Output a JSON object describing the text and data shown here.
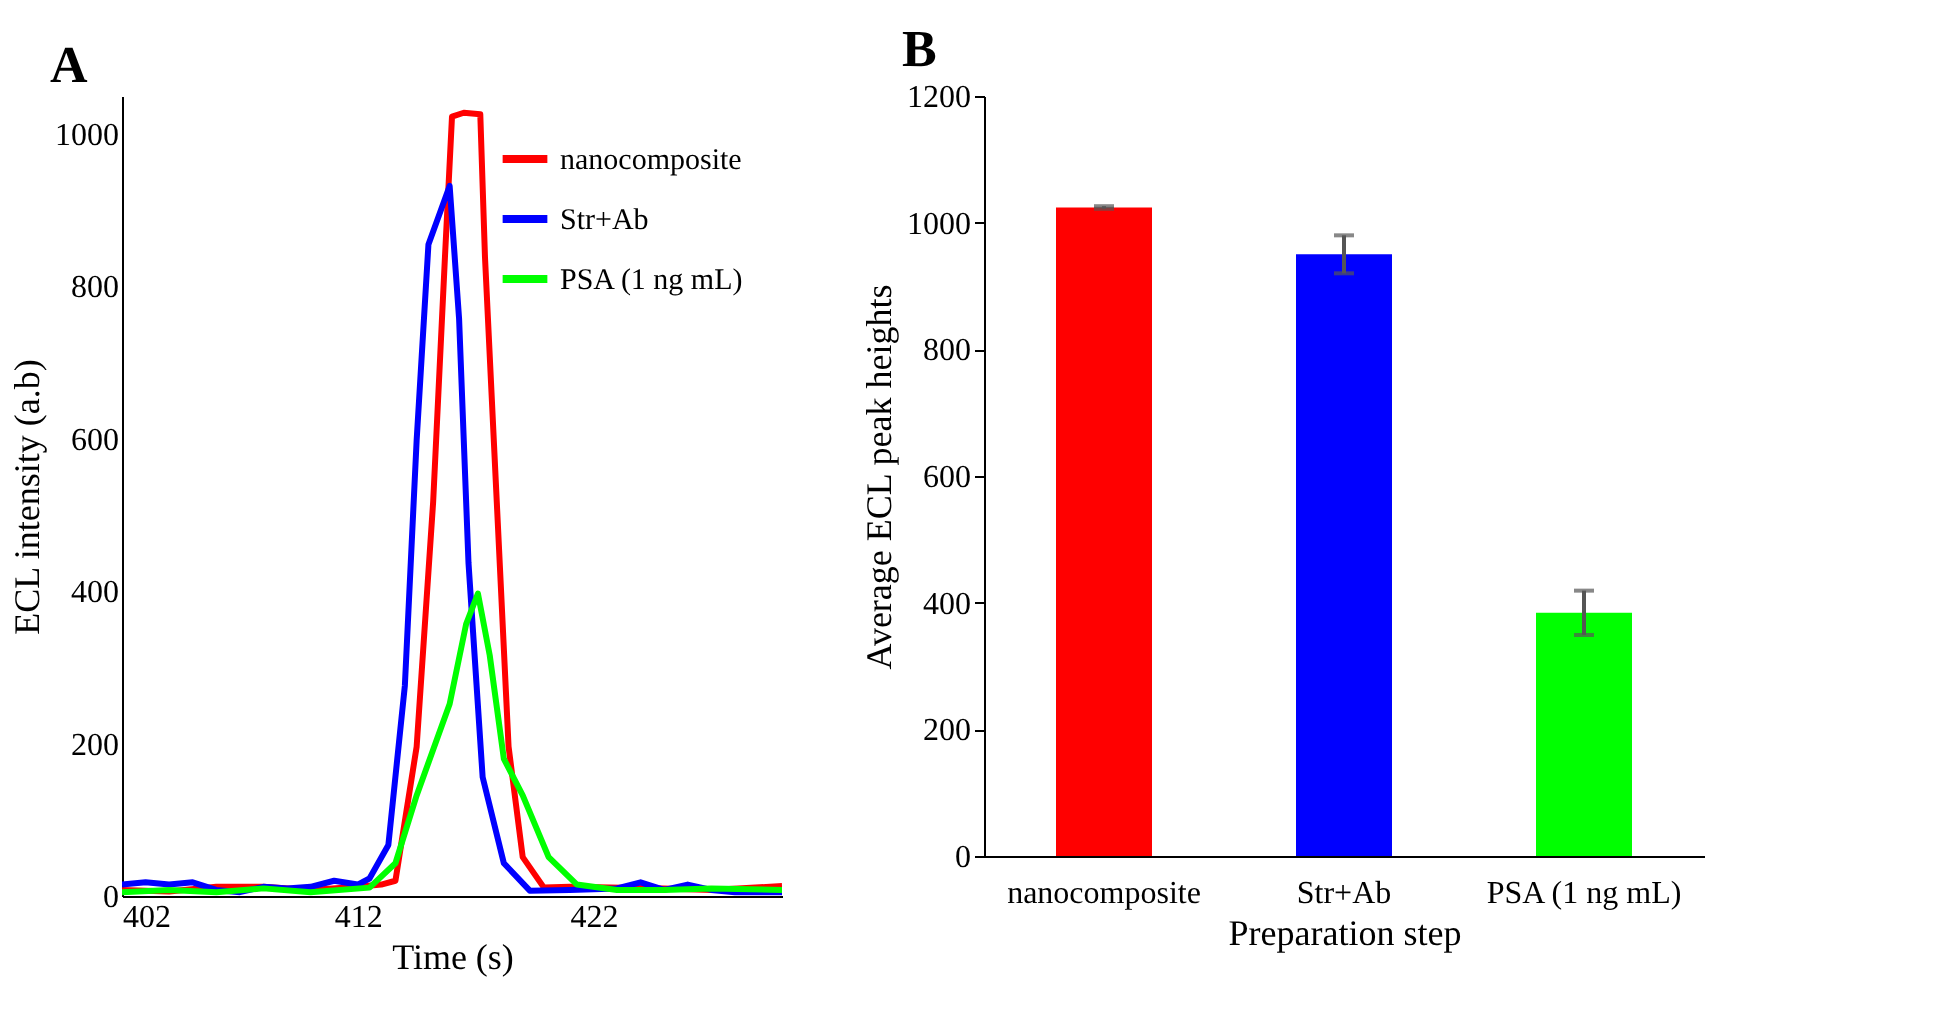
{
  "chart_data": [
    {
      "type": "line",
      "title": "A",
      "xlabel": "Time (s)",
      "ylabel": "ECL intensity (a.b)",
      "xlim": [
        402,
        430
      ],
      "xticks": [
        402,
        412,
        422
      ],
      "ylim": [
        0,
        1050
      ],
      "yticks": [
        0,
        200,
        400,
        600,
        800,
        1000
      ],
      "legend": "top right",
      "series": [
        {
          "name": "nanocomposite",
          "color": "#ff0000",
          "x": [
            402,
            404,
            406,
            408,
            410,
            412,
            413,
            413.6,
            414.5,
            415.2,
            415.7,
            416.0,
            416.5,
            417.2,
            417.4,
            417.9,
            418.4,
            419.0,
            419.9,
            421,
            425,
            427,
            430
          ],
          "values": [
            8,
            6,
            12,
            12,
            8,
            12,
            15,
            20,
            196,
            517,
            838,
            1023,
            1028,
            1026,
            838,
            517,
            196,
            51,
            11,
            12,
            10,
            8,
            13
          ]
        },
        {
          "name": "Str+Ab",
          "color": "#0000ff",
          "x": [
            402,
            403,
            404,
            405,
            406,
            407,
            408,
            409,
            410,
            411,
            412,
            412.5,
            413.3,
            414.0,
            414.5,
            415.0,
            415.9,
            416.3,
            416.7,
            417.3,
            418.2,
            419.3,
            421,
            423,
            424,
            425,
            426,
            427,
            428,
            430
          ],
          "values": [
            15,
            18,
            15,
            18,
            8,
            5,
            12,
            10,
            12,
            20,
            15,
            23,
            67,
            276,
            598,
            855,
            932,
            758,
            437,
            156,
            43,
            7,
            8,
            10,
            18,
            8,
            15,
            8,
            5,
            5
          ]
        },
        {
          "name": "PSA (1 ng mL)",
          "color": "#00ff00",
          "x": [
            402,
            404,
            406,
            408,
            410,
            412.5,
            413.6,
            414.5,
            415.9,
            416.6,
            417.1,
            417.6,
            418.2,
            419.0,
            420.1,
            421.3,
            423,
            425,
            427,
            430
          ],
          "values": [
            5,
            8,
            5,
            10,
            5,
            11,
            43,
            132,
            252,
            357,
            397,
            316,
            180,
            132,
            51,
            15,
            8,
            8,
            10,
            8
          ]
        }
      ]
    },
    {
      "type": "bar",
      "title": "B",
      "xlabel": "Preparation step",
      "ylabel": "Average ECL peak heights",
      "categories": [
        "nanocomposite",
        "Str+Ab",
        "PSA (1 ng mL)"
      ],
      "values": [
        1024,
        950,
        384
      ],
      "colors": [
        "#ff0000",
        "#0000ff",
        "#00ff00"
      ],
      "errors": [
        2,
        30,
        35
      ],
      "ylim": [
        0,
        1200
      ],
      "yticks": [
        0,
        200,
        400,
        600,
        800,
        1000,
        1200
      ]
    }
  ]
}
